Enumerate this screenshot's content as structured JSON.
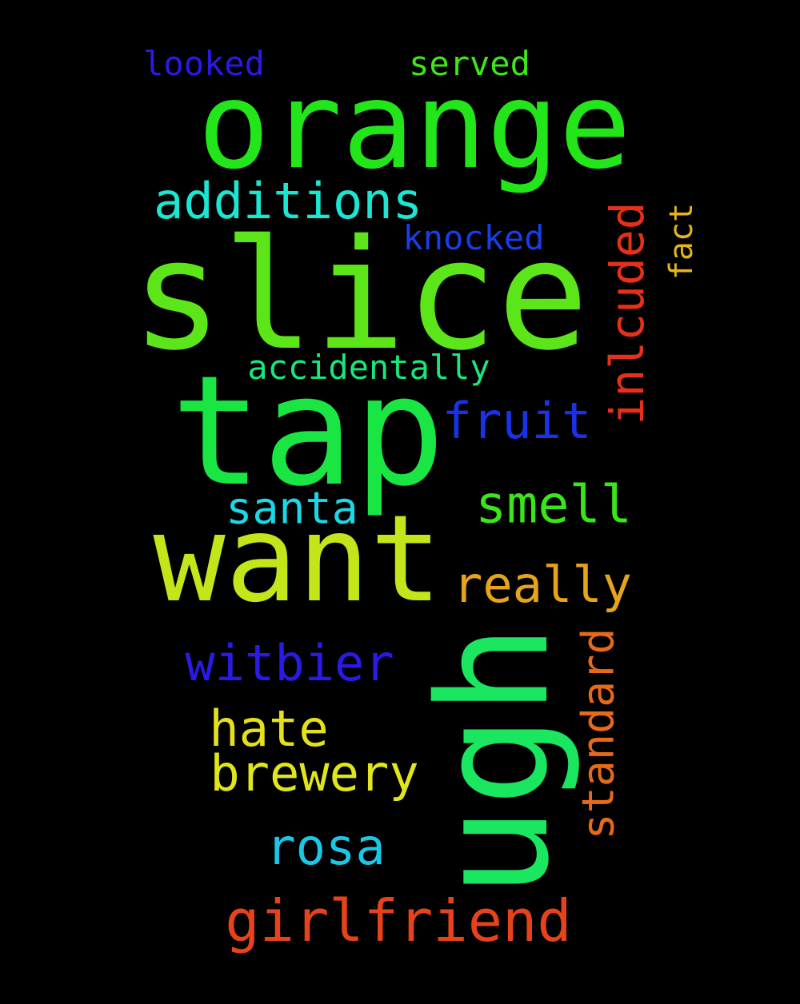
{
  "background": "#000000",
  "words": {
    "orange": {
      "text": "orange",
      "color": "#22e61a"
    },
    "slice": {
      "text": "slice",
      "color": "#5ce61a"
    },
    "tap": {
      "text": "tap",
      "color": "#1ae643"
    },
    "want": {
      "text": "want",
      "color": "#c2e61a"
    },
    "ugh": {
      "text": "ugh",
      "color": "#1ae65f"
    },
    "looked": {
      "text": "looked",
      "color": "#2b1ae6"
    },
    "served": {
      "text": "served",
      "color": "#3ee61a"
    },
    "additions": {
      "text": "additions",
      "color": "#1ae6d2"
    },
    "knocked": {
      "text": "knocked",
      "color": "#1a3ee6"
    },
    "fact": {
      "text": "fact",
      "color": "#e6b41a"
    },
    "inlcuded": {
      "text": "inlcuded",
      "color": "#e6301a"
    },
    "accidentally": {
      "text": "accidentally",
      "color": "#1ae67c"
    },
    "fruit": {
      "text": "fruit",
      "color": "#1a32e6"
    },
    "santa": {
      "text": "santa",
      "color": "#1ad8e6"
    },
    "smell": {
      "text": "smell",
      "color": "#3ae61a"
    },
    "really": {
      "text": "really",
      "color": "#e6a41a"
    },
    "witbier": {
      "text": "witbier",
      "color": "#2a1ae6"
    },
    "standard": {
      "text": "standard",
      "color": "#e66a1a"
    },
    "hate": {
      "text": "hate",
      "color": "#e6e01a"
    },
    "brewery": {
      "text": "brewery",
      "color": "#e0e61a"
    },
    "rosa": {
      "text": "rosa",
      "color": "#1ac8e6"
    },
    "girlfriend": {
      "text": "girlfriend",
      "color": "#e6431a"
    }
  }
}
